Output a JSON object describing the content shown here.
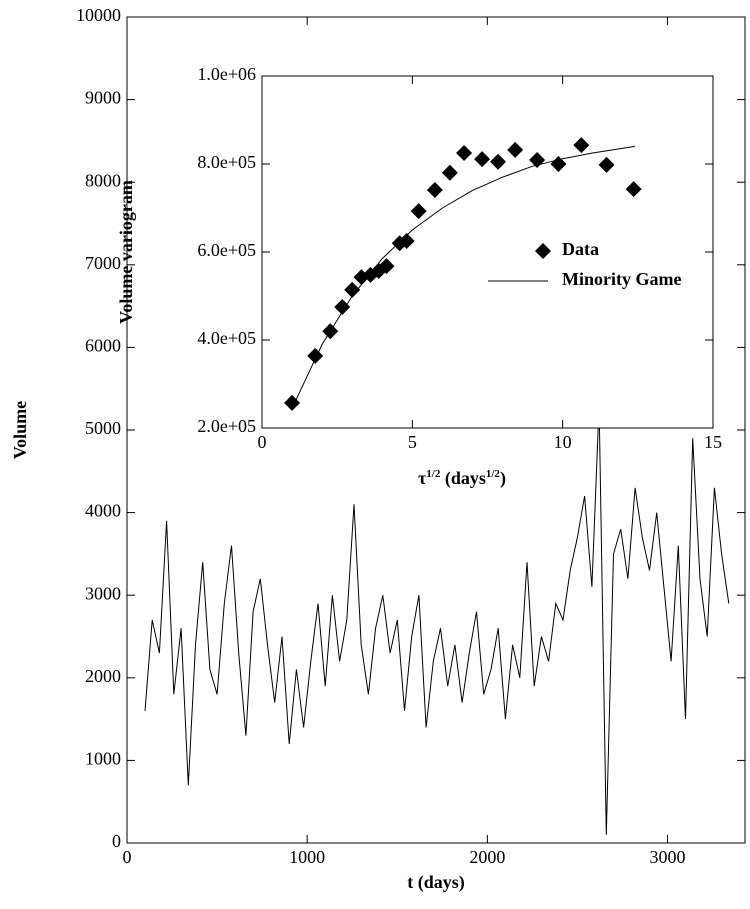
{
  "chart_data": [
    {
      "type": "line",
      "xlabel": "t (days)",
      "ylabel": "Volume",
      "xlim": [
        0,
        3430
      ],
      "ylim": [
        0,
        10000
      ],
      "xticks": [
        0,
        1000,
        2000,
        3000
      ],
      "yticks": [
        0,
        1000,
        2000,
        3000,
        4000,
        5000,
        6000,
        7000,
        8000,
        9000,
        10000
      ],
      "x": [
        100,
        140,
        180,
        220,
        260,
        300,
        340,
        380,
        420,
        460,
        500,
        540,
        580,
        620,
        660,
        700,
        740,
        780,
        820,
        860,
        900,
        940,
        980,
        1020,
        1060,
        1100,
        1140,
        1180,
        1220,
        1260,
        1300,
        1340,
        1380,
        1420,
        1460,
        1500,
        1540,
        1580,
        1620,
        1660,
        1700,
        1740,
        1780,
        1820,
        1860,
        1900,
        1940,
        1980,
        2020,
        2060,
        2100,
        2140,
        2180,
        2220,
        2260,
        2300,
        2340,
        2380,
        2420,
        2460,
        2500,
        2540,
        2580,
        2620,
        2660,
        2700,
        2740,
        2780,
        2820,
        2860,
        2900,
        2940,
        2980,
        3020,
        3060,
        3100,
        3140,
        3180,
        3220,
        3260,
        3300,
        3340
      ],
      "series": [
        {
          "color": "#000000",
          "values": [
            1600,
            2700,
            2300,
            3900,
            1800,
            2600,
            700,
            2400,
            3400,
            2100,
            1800,
            2900,
            3600,
            2300,
            1300,
            2800,
            3200,
            2400,
            1700,
            2500,
            1200,
            2100,
            1400,
            2200,
            2900,
            1900,
            3000,
            2200,
            2700,
            4100,
            2400,
            1800,
            2600,
            3000,
            2300,
            2700,
            1600,
            2500,
            3000,
            1400,
            2200,
            2600,
            1900,
            2400,
            1700,
            2300,
            2800,
            1800,
            2100,
            2600,
            1500,
            2400,
            2000,
            3400,
            1900,
            2500,
            2200,
            2900,
            2700,
            3300,
            3700,
            4200,
            3100,
            5300,
            100,
            3500,
            3800,
            3200,
            4300,
            3700,
            3300,
            4000,
            3100,
            2200,
            3600,
            1500,
            4900,
            3200,
            2500,
            4300,
            3500,
            2900
          ]
        }
      ]
    },
    {
      "type": "scatter",
      "xlabel": [
        "τ",
        "1/2",
        " (days",
        "1/2",
        ")"
      ],
      "ylabel": "Volume variogram",
      "xlim": [
        0,
        15
      ],
      "ylim": [
        200000,
        1000000
      ],
      "xticks": [
        0,
        5,
        10,
        15
      ],
      "yticks": [
        {
          "value": 200000,
          "label": "2.0e+05"
        },
        {
          "value": 400000,
          "label": "4.0e+05"
        },
        {
          "value": 600000,
          "label": "6.0e+05"
        },
        {
          "value": 800000,
          "label": "8.0e+05"
        },
        {
          "value": 1000000,
          "label": "1.0e+06"
        }
      ],
      "series": [
        {
          "name": "Data",
          "type": "scatter",
          "color": "#000000",
          "x": [
            1.0,
            1.77,
            2.27,
            2.67,
            3.0,
            3.31,
            3.61,
            3.88,
            4.14,
            4.58,
            4.81,
            5.21,
            5.75,
            6.25,
            6.72,
            7.32,
            7.85,
            8.42,
            9.15,
            9.86,
            10.62,
            11.46,
            12.36
          ],
          "values": [
            257000,
            364000,
            420000,
            475000,
            514000,
            543000,
            548000,
            557000,
            568000,
            620000,
            625000,
            693000,
            741000,
            780000,
            825000,
            811000,
            805000,
            832000,
            809000,
            800000,
            843000,
            798000,
            743000
          ]
        },
        {
          "name": "Minority Game",
          "type": "line",
          "color": "#000000",
          "x": [
            1,
            2,
            3,
            4,
            5,
            6,
            7,
            8,
            9,
            10,
            11,
            12.4
          ],
          "values": [
            245000,
            390000,
            500000,
            585000,
            650000,
            700000,
            740000,
            770000,
            795000,
            812000,
            825000,
            840000
          ]
        }
      ]
    }
  ]
}
